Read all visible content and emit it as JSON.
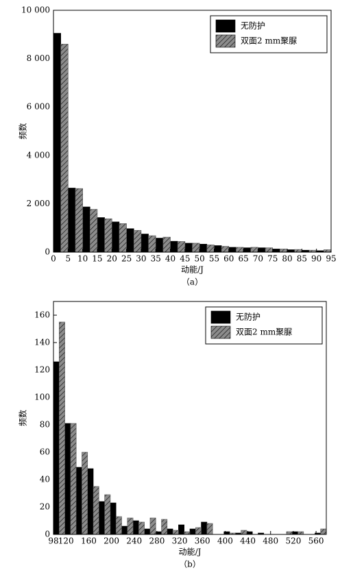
{
  "chart_data": [
    {
      "type": "histogram",
      "x_label": "动能/J",
      "y_label": "频数",
      "caption": "（a）",
      "legend": "upper right",
      "bins": [
        0,
        5,
        10,
        15,
        20,
        25,
        30,
        35,
        40,
        45,
        50,
        55,
        60,
        65,
        70,
        75,
        80,
        85,
        90,
        95
      ],
      "series": [
        {
          "name": "无防护",
          "color": "#000000",
          "values": [
            9050,
            2650,
            1870,
            1430,
            1250,
            970,
            750,
            580,
            450,
            370,
            330,
            270,
            200,
            180,
            180,
            130,
            100,
            80,
            60
          ]
        },
        {
          "name": "双面2 mm聚脲",
          "color": "#8c8c8c",
          "values": [
            8600,
            2630,
            1770,
            1380,
            1180,
            900,
            680,
            620,
            440,
            370,
            300,
            240,
            200,
            200,
            180,
            130,
            110,
            80,
            100
          ]
        }
      ],
      "xlim": [
        0,
        95
      ],
      "xticks": [
        0,
        5,
        10,
        15,
        20,
        25,
        30,
        35,
        40,
        45,
        50,
        55,
        60,
        65,
        70,
        75,
        80,
        85,
        90,
        95
      ],
      "ylim": [
        0,
        10000
      ],
      "yticks": [
        0,
        {
          "value": 2000,
          "label": "2 000"
        },
        {
          "value": 4000,
          "label": "4 000"
        },
        {
          "value": 6000,
          "label": "6 000"
        },
        {
          "value": 8000,
          "label": "8 000"
        },
        {
          "value": 10000,
          "label": "10 000"
        }
      ]
    },
    {
      "type": "histogram",
      "x_label": "动能/J",
      "y_label": "频数",
      "caption": "（b）",
      "legend": "upper right",
      "bins": [
        98,
        118,
        138,
        158,
        178,
        198,
        218,
        238,
        258,
        278,
        298,
        318,
        338,
        358,
        378,
        398,
        418,
        438,
        458,
        478,
        498,
        518,
        538,
        558,
        578
      ],
      "series": [
        {
          "name": "无防护",
          "color": "#000000",
          "values": [
            126,
            81,
            49,
            48,
            24,
            23,
            6,
            10,
            4,
            2,
            4,
            7,
            4,
            9,
            0,
            2,
            1,
            2,
            1,
            0,
            0,
            2,
            0,
            1
          ]
        },
        {
          "name": "双面2 mm聚脲",
          "color": "#8c8c8c",
          "values": [
            155,
            81,
            60,
            35,
            29,
            13,
            12,
            9,
            12,
            11,
            3,
            2,
            5,
            8,
            0,
            1,
            3,
            0,
            0,
            0,
            2,
            2,
            0,
            4
          ]
        }
      ],
      "xlim": [
        98,
        578
      ],
      "xticks": [
        98,
        120,
        160,
        200,
        240,
        280,
        320,
        360,
        400,
        440,
        480,
        520,
        560
      ],
      "ylim": [
        0,
        170
      ],
      "yticks": [
        0,
        20,
        40,
        60,
        80,
        100,
        120,
        140,
        160
      ]
    }
  ]
}
